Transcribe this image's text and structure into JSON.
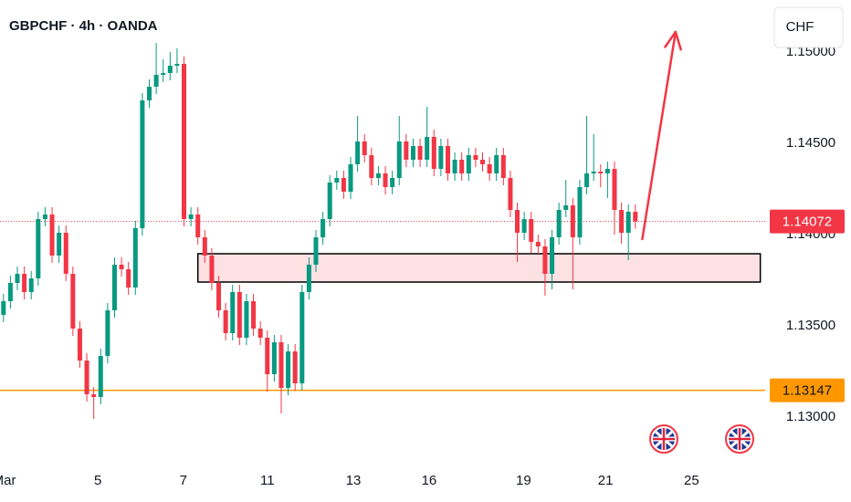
{
  "chart_data": {
    "type": "candlestick",
    "title": "GBPCHF · 4h · OANDA",
    "currency": "CHF",
    "up_color": "#089981",
    "down_color": "#f23645",
    "xlim": [
      -0.5,
      109.7
    ],
    "ylim": [
      1.12735,
      1.15285
    ],
    "xticks": [
      {
        "value": 0.1,
        "label": "Mar"
      },
      {
        "value": 13.6,
        "label": "5"
      },
      {
        "value": 25.9,
        "label": "7"
      },
      {
        "value": 38,
        "label": "11"
      },
      {
        "value": 50.4,
        "label": "13"
      },
      {
        "value": 61.3,
        "label": "16"
      },
      {
        "value": 74.9,
        "label": "19"
      },
      {
        "value": 86.7,
        "label": "21"
      },
      {
        "value": 99.1,
        "label": "25"
      }
    ],
    "yticks": [
      {
        "value": 1.13,
        "label": "1.13000"
      },
      {
        "value": 1.135,
        "label": "1.13500"
      },
      {
        "value": 1.14,
        "label": "1.14000"
      },
      {
        "value": 1.145,
        "label": "1.14500"
      },
      {
        "value": 1.15,
        "label": "1.15000"
      }
    ],
    "last_price": 1.14072,
    "support_line": 1.13147,
    "support_color": "#ff9800",
    "zone": {
      "x": [
        28,
        109
      ],
      "y": [
        1.1374,
        1.13895
      ]
    },
    "arrow": {
      "x": [
        92,
        96.8
      ],
      "y": [
        1.13975,
        1.1511
      ]
    },
    "ohlc": [
      [
        1.1356,
        1.13675,
        1.1352,
        1.13635
      ],
      [
        1.13635,
        1.13775,
        1.13595,
        1.13735
      ],
      [
        1.13735,
        1.13825,
        1.13695,
        1.13785
      ],
      [
        1.13785,
        1.13825,
        1.13645,
        1.13685
      ],
      [
        1.13685,
        1.138,
        1.13645,
        1.1376
      ],
      [
        1.1376,
        1.14125,
        1.1372,
        1.14085
      ],
      [
        1.14085,
        1.1415,
        1.14045,
        1.1411
      ],
      [
        1.1411,
        1.1415,
        1.13845,
        1.13885
      ],
      [
        1.13885,
        1.1405,
        1.13845,
        1.1401
      ],
      [
        1.1401,
        1.1405,
        1.13745,
        1.13785
      ],
      [
        1.13785,
        1.13825,
        1.13445,
        1.13485
      ],
      [
        1.13485,
        1.13525,
        1.1327,
        1.1331
      ],
      [
        1.1331,
        1.1335,
        1.13085,
        1.13125
      ],
      [
        1.13125,
        1.13165,
        1.1299,
        1.1311
      ],
      [
        1.1311,
        1.13375,
        1.1307,
        1.13335
      ],
      [
        1.13335,
        1.13625,
        1.13295,
        1.13585
      ],
      [
        1.13585,
        1.13875,
        1.13545,
        1.13835
      ],
      [
        1.13835,
        1.13875,
        1.1377,
        1.1381
      ],
      [
        1.1381,
        1.1385,
        1.1367,
        1.1371
      ],
      [
        1.1371,
        1.14075,
        1.1367,
        1.14035
      ],
      [
        1.14035,
        1.14775,
        1.13995,
        1.14735
      ],
      [
        1.14735,
        1.1485,
        1.14695,
        1.1481
      ],
      [
        1.1481,
        1.1505,
        1.1477,
        1.14875
      ],
      [
        1.14875,
        1.1496,
        1.14835,
        1.14885
      ],
      [
        1.14885,
        1.15,
        1.14845,
        1.14925
      ],
      [
        1.14925,
        1.1502,
        1.14885,
        1.14935
      ],
      [
        1.14935,
        1.14975,
        1.14045,
        1.14085
      ],
      [
        1.14085,
        1.1415,
        1.14045,
        1.1411
      ],
      [
        1.1411,
        1.1415,
        1.13945,
        1.13985
      ],
      [
        1.13985,
        1.14025,
        1.13845,
        1.13885
      ],
      [
        1.13885,
        1.13925,
        1.13695,
        1.13735
      ],
      [
        1.13735,
        1.13775,
        1.13545,
        1.13585
      ],
      [
        1.13585,
        1.13625,
        1.1342,
        1.1346
      ],
      [
        1.1346,
        1.13725,
        1.1342,
        1.13685
      ],
      [
        1.13685,
        1.13725,
        1.13395,
        1.13435
      ],
      [
        1.13435,
        1.13675,
        1.13395,
        1.13635
      ],
      [
        1.13635,
        1.13675,
        1.13445,
        1.13485
      ],
      [
        1.13485,
        1.13525,
        1.13395,
        1.13435
      ],
      [
        1.13435,
        1.13475,
        1.1314,
        1.13235
      ],
      [
        1.13235,
        1.1345,
        1.13195,
        1.1341
      ],
      [
        1.1341,
        1.1345,
        1.1302,
        1.1316
      ],
      [
        1.1316,
        1.134,
        1.1312,
        1.1336
      ],
      [
        1.1336,
        1.134,
        1.13145,
        1.13185
      ],
      [
        1.13185,
        1.13725,
        1.13145,
        1.13685
      ],
      [
        1.13685,
        1.13875,
        1.13645,
        1.13835
      ],
      [
        1.13835,
        1.14025,
        1.13795,
        1.13985
      ],
      [
        1.13985,
        1.14125,
        1.13945,
        1.14085
      ],
      [
        1.14085,
        1.14325,
        1.14045,
        1.14285
      ],
      [
        1.14285,
        1.1435,
        1.14245,
        1.1431
      ],
      [
        1.1431,
        1.1435,
        1.14195,
        1.14235
      ],
      [
        1.14235,
        1.14425,
        1.14195,
        1.14385
      ],
      [
        1.14385,
        1.1465,
        1.14345,
        1.1451
      ],
      [
        1.1451,
        1.1455,
        1.14395,
        1.14435
      ],
      [
        1.14435,
        1.14475,
        1.1427,
        1.1431
      ],
      [
        1.1431,
        1.14375,
        1.1427,
        1.14335
      ],
      [
        1.14335,
        1.14375,
        1.1422,
        1.1426
      ],
      [
        1.1426,
        1.1435,
        1.1422,
        1.1431
      ],
      [
        1.1431,
        1.1465,
        1.1427,
        1.1451
      ],
      [
        1.1451,
        1.1455,
        1.1437,
        1.1441
      ],
      [
        1.1441,
        1.14525,
        1.1437,
        1.14485
      ],
      [
        1.14485,
        1.14525,
        1.1437,
        1.1441
      ],
      [
        1.1441,
        1.147,
        1.1437,
        1.14535
      ],
      [
        1.14535,
        1.14575,
        1.1432,
        1.1436
      ],
      [
        1.1436,
        1.14525,
        1.1432,
        1.14485
      ],
      [
        1.14485,
        1.14525,
        1.14295,
        1.14335
      ],
      [
        1.14335,
        1.1445,
        1.14295,
        1.1441
      ],
      [
        1.1441,
        1.1445,
        1.14295,
        1.14335
      ],
      [
        1.14335,
        1.14475,
        1.14295,
        1.14435
      ],
      [
        1.14435,
        1.14475,
        1.1437,
        1.1441
      ],
      [
        1.1441,
        1.1445,
        1.14345,
        1.14385
      ],
      [
        1.14385,
        1.14425,
        1.14295,
        1.14335
      ],
      [
        1.14335,
        1.14475,
        1.14295,
        1.14435
      ],
      [
        1.14435,
        1.14475,
        1.1427,
        1.1431
      ],
      [
        1.1431,
        1.1435,
        1.14095,
        1.14135
      ],
      [
        1.14135,
        1.14175,
        1.1385,
        1.1401
      ],
      [
        1.1401,
        1.14125,
        1.1397,
        1.14085
      ],
      [
        1.14085,
        1.14125,
        1.139,
        1.1396
      ],
      [
        1.1396,
        1.14,
        1.13895,
        1.13935
      ],
      [
        1.13935,
        1.13975,
        1.13665,
        1.13785
      ],
      [
        1.13785,
        1.14025,
        1.137,
        1.13985
      ],
      [
        1.13985,
        1.14175,
        1.13945,
        1.14135
      ],
      [
        1.14135,
        1.143,
        1.14095,
        1.1416
      ],
      [
        1.1416,
        1.142,
        1.137,
        1.13985
      ],
      [
        1.13985,
        1.143,
        1.13945,
        1.1426
      ],
      [
        1.1426,
        1.1465,
        1.1422,
        1.14335
      ],
      [
        1.14335,
        1.1455,
        1.14295,
        1.14345
      ],
      [
        1.14345,
        1.14385,
        1.1426,
        1.14335
      ],
      [
        1.14335,
        1.144,
        1.142,
        1.1436
      ],
      [
        1.1436,
        1.144,
        1.14,
        1.14135
      ],
      [
        1.14135,
        1.14175,
        1.1395,
        1.1401
      ],
      [
        1.1401,
        1.14165,
        1.1386,
        1.14125
      ],
      [
        1.14125,
        1.14165,
        1.14032,
        1.14072
      ]
    ]
  }
}
